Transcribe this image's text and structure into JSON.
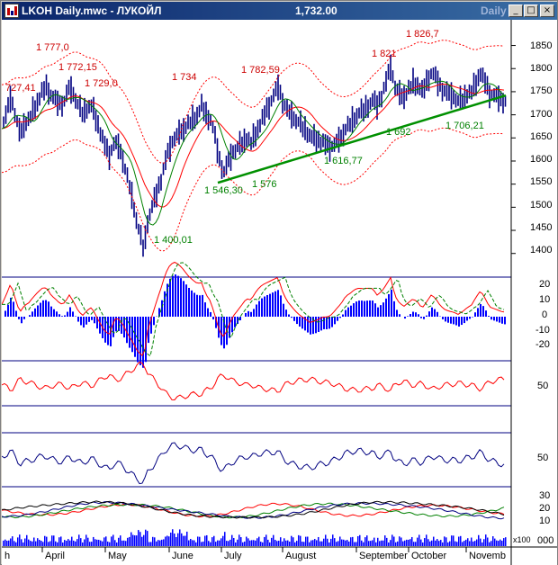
{
  "window": {
    "title": "LKOH Daily.mwc - ЛУКОЙЛ",
    "last_price": "1,732.00",
    "period": "Daily",
    "minimize_glyph": "_",
    "maximize_glyph": "□",
    "close_glyph": "×"
  },
  "colors": {
    "price_bars": "#000080",
    "moving_average_fast": "#008000",
    "moving_average_slow": "#ff0000",
    "envelope": "#ff0000",
    "trendline": "#009000",
    "annotation_high": "#cc0000",
    "annotation_low": "#008000"
  },
  "chart_data": [
    {
      "type": "ohlc",
      "panel": "price",
      "ylim": [
        1380,
        1890
      ],
      "y_ticks": [
        "1850",
        "1800",
        "1750",
        "1700",
        "1650",
        "1600",
        "1550",
        "1500",
        "1450",
        "1400"
      ],
      "x_labels": [
        "h",
        "April",
        "May",
        "June",
        "July",
        "August",
        "September",
        "October",
        "Novemb"
      ],
      "annotations_high": [
        "727,41",
        "1 777,0",
        "1 772,15",
        "1 729,0",
        "1 734",
        "1 782,59",
        "1 821",
        "1 826,7"
      ],
      "annotations_low": [
        "1 400,01",
        "1 546,30",
        "1 576",
        "1 616,77",
        "1 692",
        "1 706,21"
      ],
      "close_points": [
        [
          0,
          1670
        ],
        [
          5,
          1700
        ],
        [
          10,
          1740
        ],
        [
          15,
          1700
        ],
        [
          20,
          1660
        ],
        [
          25,
          1680
        ],
        [
          30,
          1690
        ],
        [
          35,
          1710
        ],
        [
          40,
          1730
        ],
        [
          45,
          1750
        ],
        [
          50,
          1760
        ],
        [
          55,
          1740
        ],
        [
          60,
          1730
        ],
        [
          65,
          1720
        ],
        [
          70,
          1730
        ],
        [
          75,
          1760
        ],
        [
          80,
          1745
        ],
        [
          85,
          1720
        ],
        [
          90,
          1705
        ],
        [
          95,
          1715
        ],
        [
          100,
          1720
        ],
        [
          105,
          1690
        ],
        [
          110,
          1660
        ],
        [
          115,
          1630
        ],
        [
          120,
          1610
        ],
        [
          125,
          1640
        ],
        [
          130,
          1630
        ],
        [
          135,
          1600
        ],
        [
          140,
          1560
        ],
        [
          145,
          1520
        ],
        [
          150,
          1470
        ],
        [
          155,
          1430
        ],
        [
          158,
          1410
        ],
        [
          162,
          1470
        ],
        [
          167,
          1500
        ],
        [
          172,
          1530
        ],
        [
          177,
          1560
        ],
        [
          182,
          1600
        ],
        [
          187,
          1630
        ],
        [
          192,
          1650
        ],
        [
          197,
          1660
        ],
        [
          202,
          1670
        ],
        [
          207,
          1680
        ],
        [
          212,
          1690
        ],
        [
          217,
          1700
        ],
        [
          222,
          1720
        ],
        [
          227,
          1700
        ],
        [
          232,
          1690
        ],
        [
          237,
          1650
        ],
        [
          242,
          1600
        ],
        [
          247,
          1575
        ],
        [
          252,
          1600
        ],
        [
          257,
          1620
        ],
        [
          262,
          1630
        ],
        [
          267,
          1640
        ],
        [
          272,
          1650
        ],
        [
          277,
          1640
        ],
        [
          282,
          1660
        ],
        [
          287,
          1680
        ],
        [
          292,
          1700
        ],
        [
          297,
          1720
        ],
        [
          302,
          1740
        ],
        [
          307,
          1760
        ],
        [
          312,
          1730
        ],
        [
          317,
          1710
        ],
        [
          322,
          1700
        ],
        [
          327,
          1690
        ],
        [
          332,
          1680
        ],
        [
          337,
          1670
        ],
        [
          342,
          1655
        ],
        [
          347,
          1650
        ],
        [
          352,
          1645
        ],
        [
          357,
          1640
        ],
        [
          362,
          1630
        ],
        [
          367,
          1630
        ],
        [
          372,
          1640
        ],
        [
          377,
          1650
        ],
        [
          382,
          1670
        ],
        [
          387,
          1680
        ],
        [
          392,
          1695
        ],
        [
          397,
          1705
        ],
        [
          402,
          1710
        ],
        [
          407,
          1720
        ],
        [
          412,
          1730
        ],
        [
          417,
          1720
        ],
        [
          422,
          1740
        ],
        [
          427,
          1770
        ],
        [
          432,
          1805
        ],
        [
          437,
          1760
        ],
        [
          442,
          1745
        ],
        [
          447,
          1740
        ],
        [
          452,
          1755
        ],
        [
          457,
          1770
        ],
        [
          462,
          1765
        ],
        [
          467,
          1750
        ],
        [
          472,
          1770
        ],
        [
          477,
          1790
        ],
        [
          482,
          1780
        ],
        [
          487,
          1760
        ],
        [
          492,
          1750
        ],
        [
          497,
          1745
        ],
        [
          502,
          1740
        ],
        [
          507,
          1730
        ],
        [
          512,
          1735
        ],
        [
          517,
          1745
        ],
        [
          522,
          1750
        ],
        [
          527,
          1770
        ],
        [
          532,
          1790
        ],
        [
          537,
          1770
        ],
        [
          542,
          1745
        ],
        [
          547,
          1740
        ],
        [
          552,
          1735
        ],
        [
          557,
          1730
        ]
      ],
      "trendline": [
        [
          240,
          1553
        ],
        [
          560,
          1742
        ]
      ]
    },
    {
      "type": "histogram_line",
      "panel": "macd",
      "ylim": [
        -25,
        25
      ],
      "y_ticks": [
        "20",
        "10",
        "0",
        "-10",
        "-20"
      ]
    },
    {
      "type": "line",
      "panel": "oscillator_1",
      "y_ticks": [
        "50"
      ]
    },
    {
      "type": "line",
      "panel": "oscillator_2",
      "y_ticks": [
        "50"
      ]
    },
    {
      "type": "line",
      "panel": "directional",
      "y_ticks": [
        "30",
        "20",
        "10"
      ]
    },
    {
      "type": "bar",
      "panel": "volume",
      "y_ticks": [
        "000"
      ],
      "scale_label": "x100"
    }
  ]
}
